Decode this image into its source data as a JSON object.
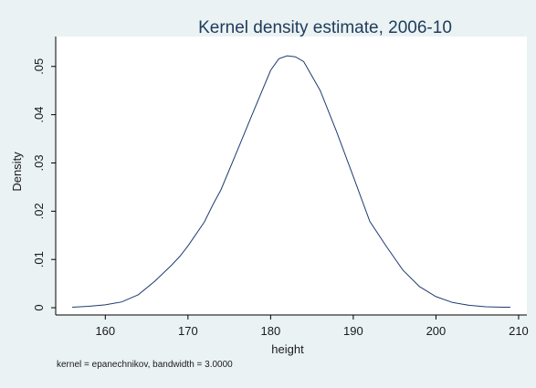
{
  "chart_data": {
    "type": "line",
    "title": "Kernel density estimate, 2006-10",
    "xlabel": "height",
    "ylabel": "Density",
    "note": "kernel = epanechnikov, bandwidth = 3.0000",
    "xlim": [
      154,
      211
    ],
    "ylim": [
      -0.0015,
      0.0562
    ],
    "x_ticks": [
      160,
      170,
      180,
      190,
      200,
      210
    ],
    "x_tick_labels": [
      "160",
      "170",
      "180",
      "190",
      "200",
      "210"
    ],
    "y_ticks": [
      0,
      0.01,
      0.02,
      0.03,
      0.04,
      0.05
    ],
    "y_tick_labels": [
      "0",
      ".01",
      ".02",
      ".03",
      ".04",
      ".05"
    ],
    "grid": false,
    "line_color": "#1f3b6f",
    "series": [
      {
        "x": [
          156,
          158,
          160,
          162,
          164,
          166,
          168,
          169,
          170,
          171,
          172,
          173,
          174,
          176,
          178,
          180,
          181,
          182,
          183,
          184,
          186,
          188,
          190,
          192,
          194,
          196,
          198,
          200,
          202,
          204,
          206,
          208,
          209
        ],
        "y": [
          0.0001,
          0.0003,
          0.0006,
          0.0012,
          0.0027,
          0.0055,
          0.0088,
          0.0106,
          0.0128,
          0.0153,
          0.0178,
          0.0213,
          0.0245,
          0.0327,
          0.041,
          0.0492,
          0.0516,
          0.0522,
          0.052,
          0.051,
          0.045,
          0.0364,
          0.0272,
          0.0179,
          0.0127,
          0.0078,
          0.0044,
          0.0023,
          0.0011,
          0.0005,
          0.0002,
          0.0001,
          0.0001
        ]
      }
    ]
  }
}
